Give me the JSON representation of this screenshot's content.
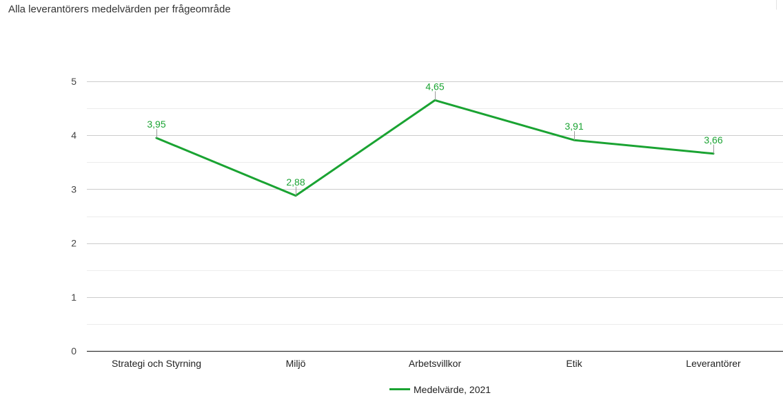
{
  "chart_data": {
    "type": "line",
    "title": "Alla leverantörers medelvärden per frågeområde",
    "categories": [
      "Strategi och Styrning",
      "Miljö",
      "Arbetsvillkor",
      "Etik",
      "Leverantörer"
    ],
    "series": [
      {
        "name": "Medelvärde, 2021",
        "values": [
          3.95,
          2.88,
          4.65,
          3.91,
          3.66
        ],
        "labels": [
          "3,95",
          "2,88",
          "4,65",
          "3,91",
          "3,66"
        ],
        "color": "#1aa332"
      }
    ],
    "ylim": [
      0,
      5
    ],
    "yticks": [
      "0",
      "1",
      "2",
      "3",
      "4",
      "5"
    ],
    "minor_gridlines": true,
    "legend_position": "bottom"
  }
}
